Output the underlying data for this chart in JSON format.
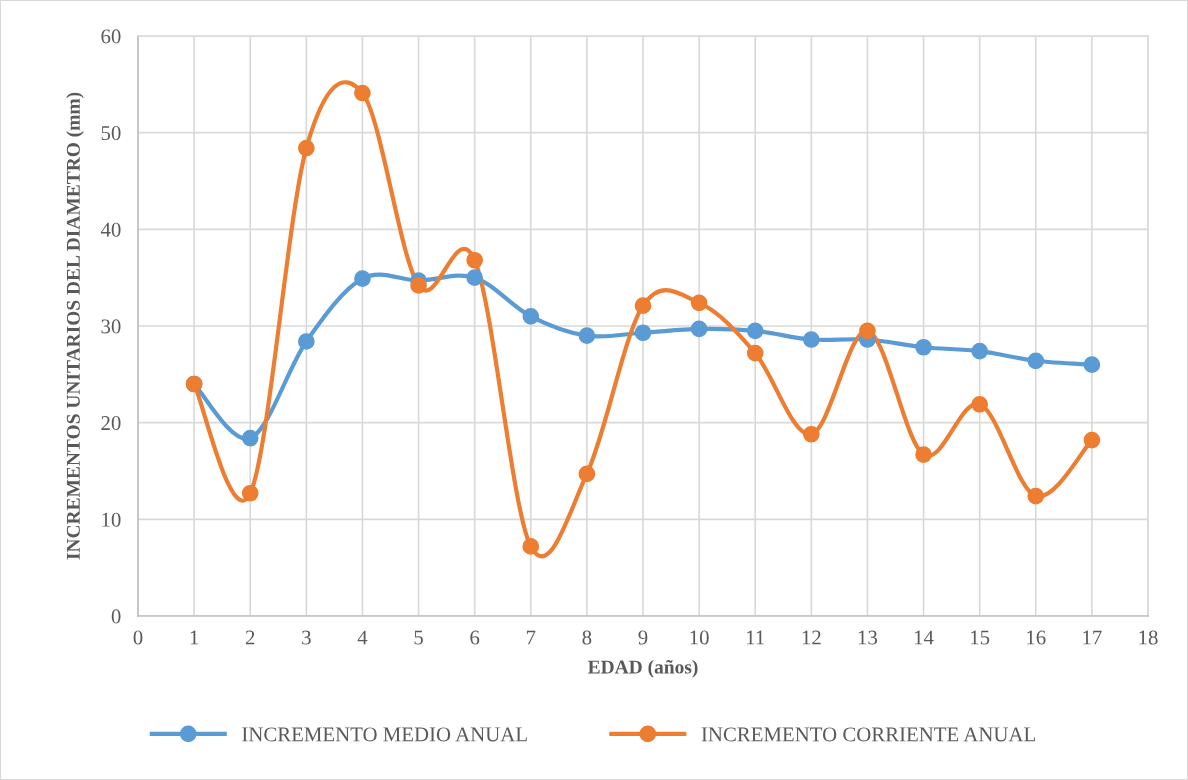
{
  "chart_data": {
    "type": "line",
    "xlabel": "EDAD (años)",
    "ylabel": "INCREMENTOS UNITARIOS DEL DIAMETRO (mm)",
    "x": [
      1,
      2,
      3,
      4,
      5,
      6,
      7,
      8,
      9,
      10,
      11,
      12,
      13,
      14,
      15,
      16,
      17
    ],
    "series": [
      {
        "name": "INCREMENTO MEDIO ANUAL",
        "color": "#5b9bd5",
        "values": [
          24.0,
          18.4,
          28.4,
          34.9,
          34.7,
          35.0,
          31.0,
          29.0,
          29.3,
          29.7,
          29.5,
          28.6,
          28.6,
          27.8,
          27.4,
          26.4,
          26.0
        ]
      },
      {
        "name": "INCREMENTO CORRIENTE ANUAL",
        "color": "#ed7d31",
        "values": [
          24.0,
          12.7,
          48.4,
          54.1,
          34.2,
          36.8,
          7.2,
          14.7,
          32.1,
          32.4,
          27.2,
          18.8,
          29.5,
          16.7,
          21.9,
          12.4,
          18.2
        ]
      }
    ],
    "xlim": [
      0,
      18
    ],
    "xticks": [
      0,
      1,
      2,
      3,
      4,
      5,
      6,
      7,
      8,
      9,
      10,
      11,
      12,
      13,
      14,
      15,
      16,
      17,
      18
    ],
    "ylim": [
      0,
      60
    ],
    "yticks": [
      0,
      10,
      20,
      30,
      40,
      50,
      60
    ],
    "grid": true,
    "legend": "bottom",
    "marker": "circle",
    "line_style": "solid"
  }
}
